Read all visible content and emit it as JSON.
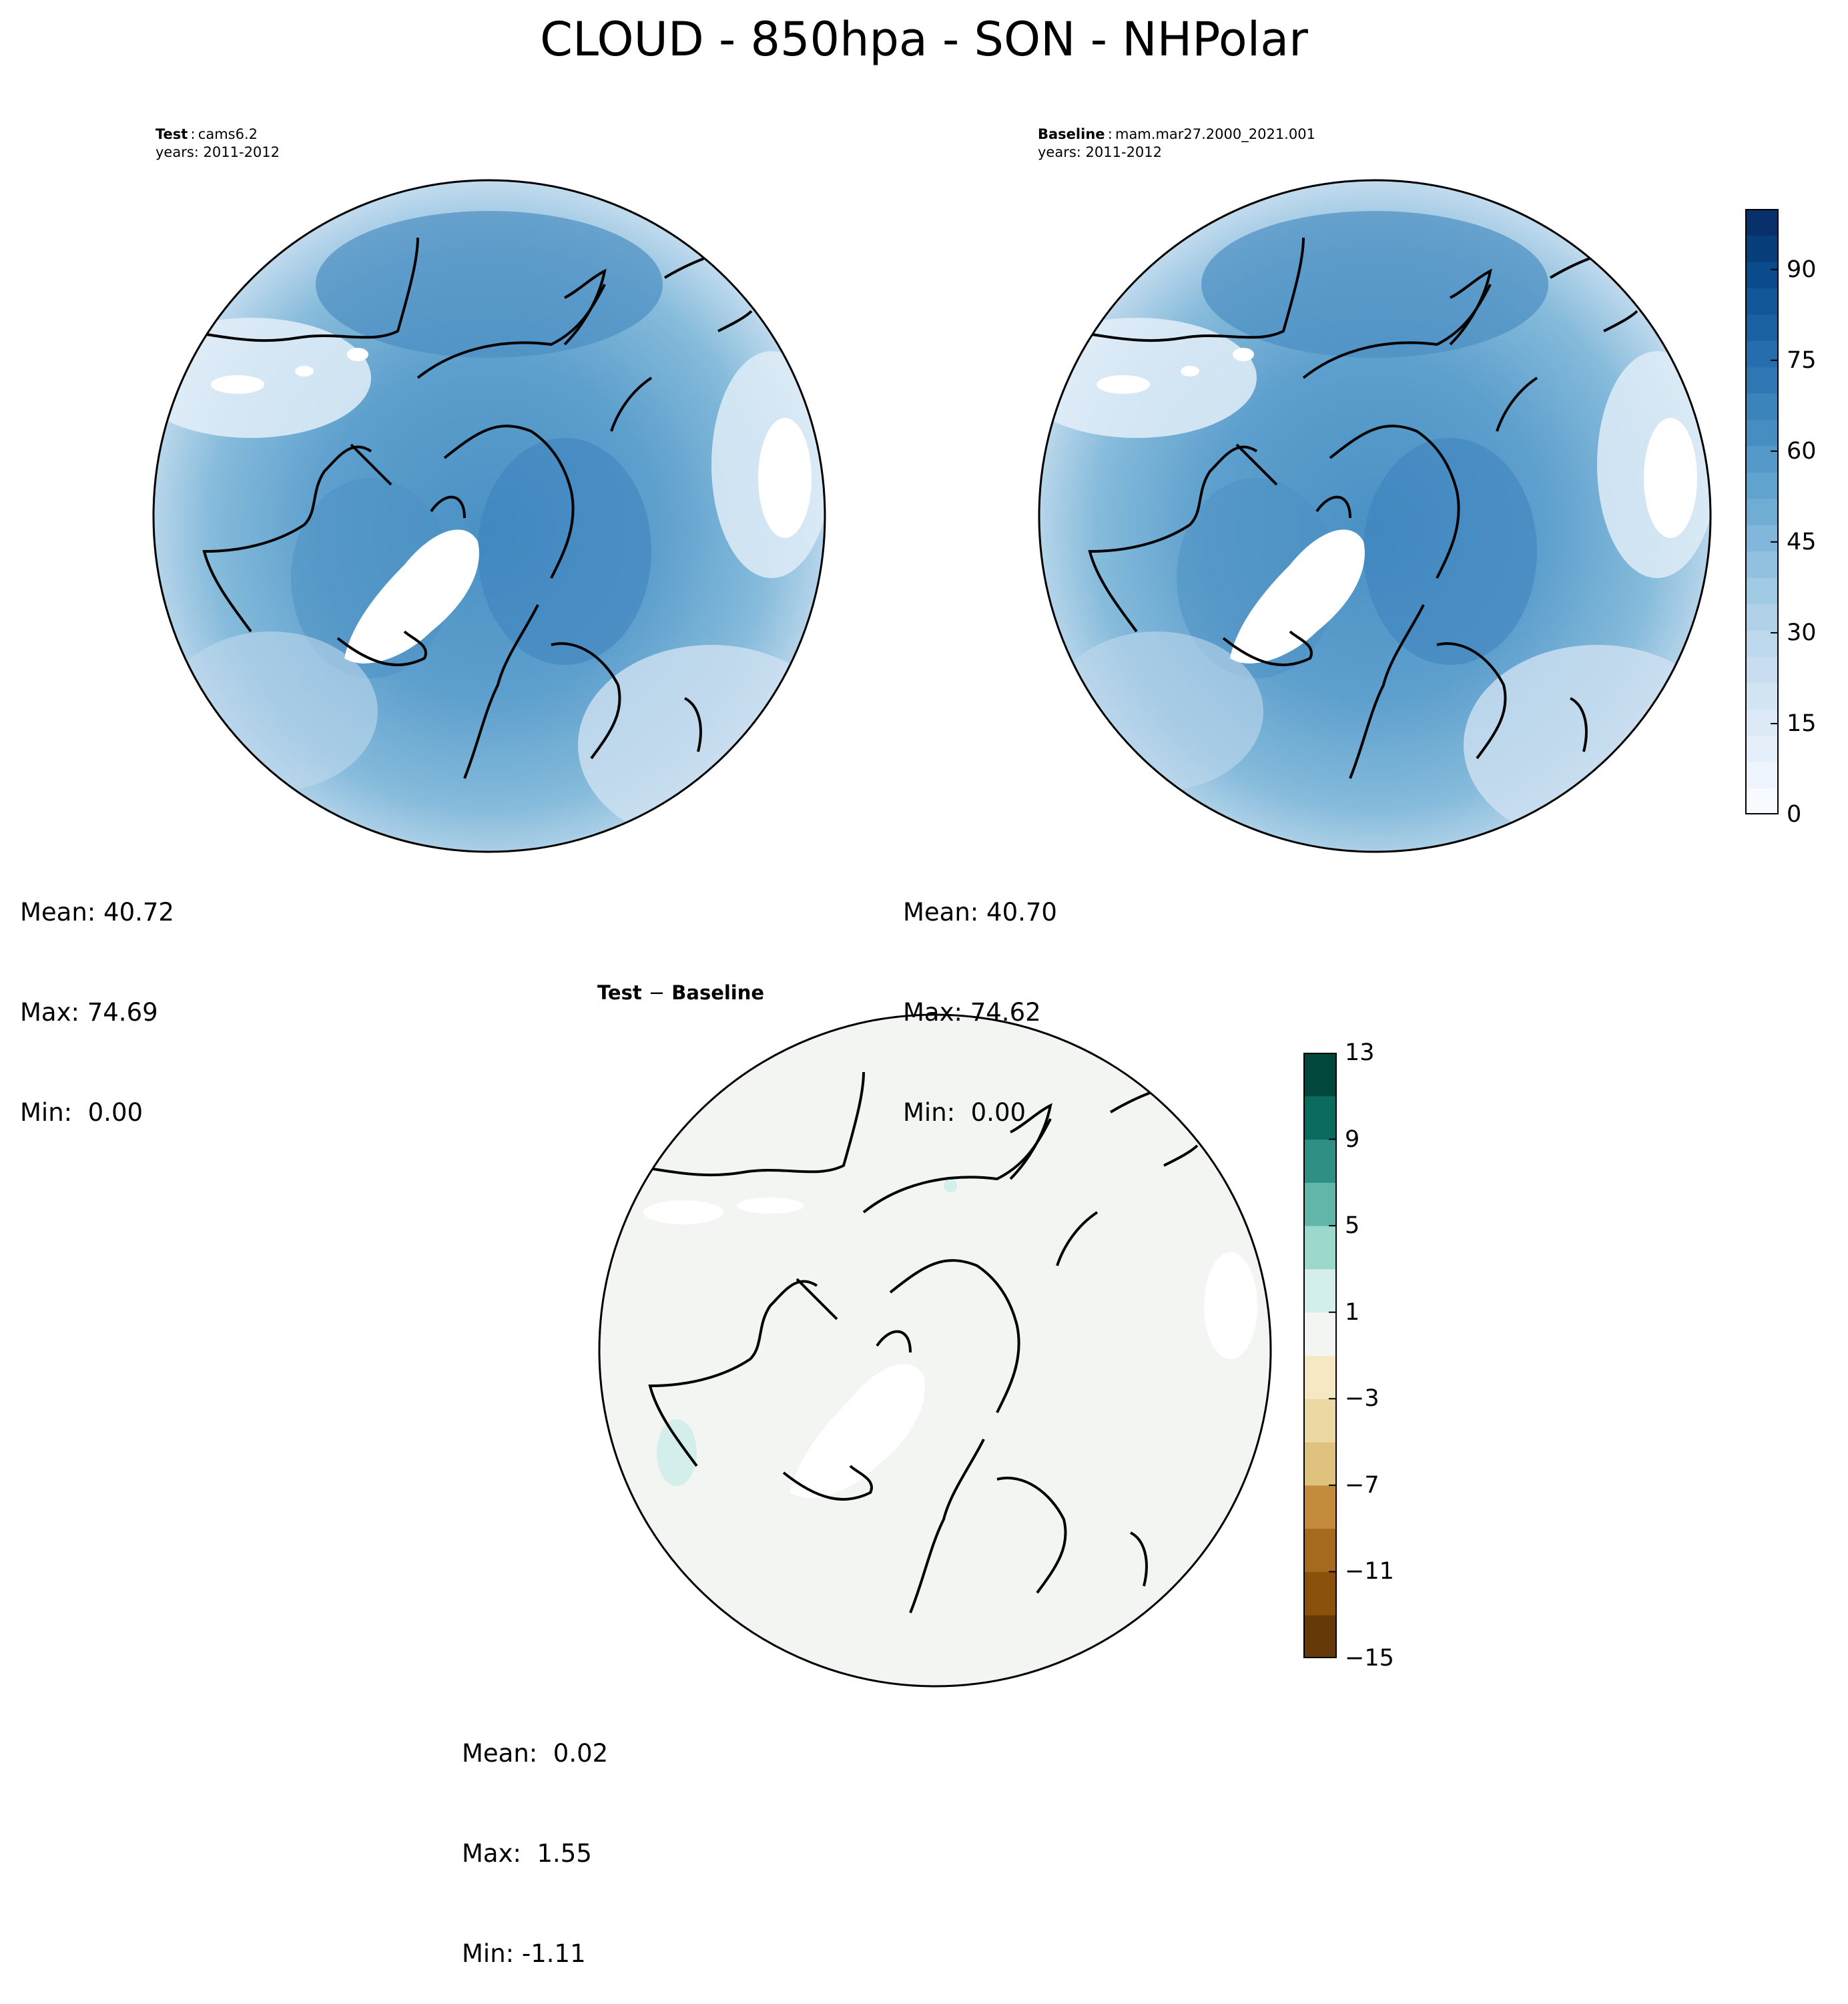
{
  "title": "CLOUD - 850hpa - SON - NHPolar",
  "panels": {
    "test": {
      "label_bold": "Test",
      "label_value": "cams6.2",
      "years": "years: 2011-2012",
      "stats": {
        "mean": "Mean: 40.72",
        "max": "Max: 74.69",
        "min": "Min:  0.00"
      }
    },
    "baseline": {
      "label_bold": "Baseline",
      "label_value": "mam.mar27.2000_2021.001",
      "years": "years: 2011-2012",
      "stats": {
        "mean": "Mean: 40.70",
        "max": "Max: 74.62",
        "min": "Min:  0.00"
      }
    },
    "diff": {
      "title_left": "Test",
      "title_sep": "−",
      "title_right": "Baseline",
      "stats": {
        "mean": "Mean:  0.02",
        "max": "Max:  1.55",
        "min": "Min: -1.11"
      }
    }
  },
  "colorbars": {
    "main": {
      "ticks": [
        "0",
        "15",
        "30",
        "45",
        "60",
        "75",
        "90"
      ],
      "tick_values": [
        0,
        15,
        30,
        45,
        60,
        75,
        90
      ],
      "range": [
        0,
        100
      ],
      "colors": [
        "#f7fbff",
        "#eef5fc",
        "#e5eff9",
        "#dce9f6",
        "#d3e4f3",
        "#c9ddf0",
        "#bdd7ec",
        "#b0d1e8",
        "#a1cae4",
        "#91c1df",
        "#80b7da",
        "#70add5",
        "#61a3cf",
        "#5499c8",
        "#468ec2",
        "#3a83bb",
        "#2f78b4",
        "#256dac",
        "#1b62a2",
        "#125798",
        "#0a4b8c",
        "#083f7a",
        "#08306b"
      ]
    },
    "diff": {
      "ticks": [
        "13",
        "9",
        "5",
        "1",
        "−3",
        "−7",
        "−11",
        "−15"
      ],
      "tick_values": [
        13,
        9,
        5,
        1,
        -3,
        -7,
        -11,
        -15
      ],
      "range": [
        -15,
        13
      ],
      "colors": [
        "#653a08",
        "#8a510c",
        "#a66a1e",
        "#c48b3c",
        "#dfc27d",
        "#ecd8a2",
        "#f6e8c3",
        "#f3f5f2",
        "#d4efeb",
        "#9cd9cc",
        "#62b6a9",
        "#2f8f85",
        "#0c6b5f",
        "#01473c"
      ]
    }
  }
}
